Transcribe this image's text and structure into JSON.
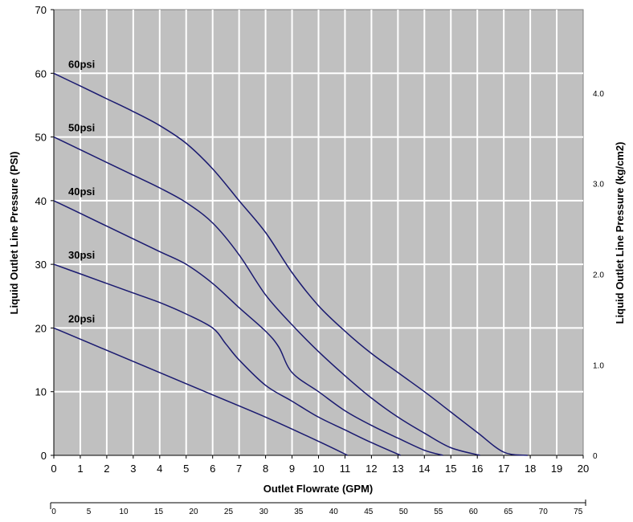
{
  "chart_data": {
    "type": "line",
    "xlabel": "Outlet Flowrate (GPM)",
    "ylabel": "Liquid Outlet Line Pressure (PSI)",
    "ylabel_right": "Liquid Outlet Line Pressure (kg/cm2)",
    "xlim": [
      0,
      20
    ],
    "ylim": [
      0,
      70
    ],
    "x_ticks": [
      "0",
      "1",
      "2",
      "3",
      "4",
      "5",
      "6",
      "7",
      "8",
      "9",
      "10",
      "11",
      "12",
      "13",
      "14",
      "15",
      "16",
      "17",
      "18",
      "19",
      "20"
    ],
    "y_ticks": [
      "0",
      "10",
      "20",
      "30",
      "40",
      "50",
      "60",
      "70"
    ],
    "right_ticks": [
      {
        "label": "0",
        "value": 0
      },
      {
        "label": "1.0",
        "value": 14.22
      },
      {
        "label": "2.0",
        "value": 28.45
      },
      {
        "label": "3.0",
        "value": 42.67
      },
      {
        "label": "4.0",
        "value": 56.89
      }
    ],
    "secondary_x_ticks": [
      {
        "label": "0",
        "value": 0
      },
      {
        "label": "5",
        "value": 1.32
      },
      {
        "label": "10",
        "value": 2.64
      },
      {
        "label": "15",
        "value": 3.96
      },
      {
        "label": "20",
        "value": 5.28
      },
      {
        "label": "25",
        "value": 6.6
      },
      {
        "label": "30",
        "value": 7.93
      },
      {
        "label": "35",
        "value": 9.25
      },
      {
        "label": "40",
        "value": 10.57
      },
      {
        "label": "45",
        "value": 11.89
      },
      {
        "label": "50",
        "value": 13.21
      },
      {
        "label": "55",
        "value": 14.53
      },
      {
        "label": "60",
        "value": 15.85
      },
      {
        "label": "65",
        "value": 17.17
      },
      {
        "label": "70",
        "value": 18.49
      },
      {
        "label": "75",
        "value": 19.81
      }
    ],
    "grid": true,
    "colors": {
      "plot_bg": "#c0c0c0",
      "grid": "#ffffff",
      "line": "#1a1a70"
    },
    "series": [
      {
        "name": "60psi",
        "x": [
          0,
          1,
          2,
          3,
          4,
          5,
          6,
          7,
          8,
          9,
          10,
          11,
          12,
          13,
          14,
          15,
          16,
          17,
          17.9
        ],
        "y": [
          60,
          58,
          56,
          54,
          51.8,
          49,
          45,
          40,
          35,
          28.7,
          23.5,
          19.5,
          16,
          13,
          10,
          6.8,
          3.6,
          0.5,
          0
        ]
      },
      {
        "name": "50psi",
        "x": [
          0,
          1,
          2,
          3,
          4,
          5,
          6,
          7,
          8,
          9,
          10,
          11,
          12,
          13,
          14,
          15,
          16.1
        ],
        "y": [
          50,
          48,
          46,
          44,
          42,
          39.7,
          36.5,
          31.5,
          25.2,
          20.5,
          16.3,
          12.5,
          9,
          6,
          3.5,
          1.2,
          0
        ]
      },
      {
        "name": "40psi",
        "x": [
          0,
          1,
          2,
          3,
          4,
          5,
          6,
          7,
          8,
          8.5,
          9,
          10,
          11,
          12,
          13,
          14,
          14.7
        ],
        "y": [
          40,
          38,
          36,
          34,
          32,
          30,
          27,
          23.2,
          19.5,
          17,
          13,
          10,
          7,
          4.7,
          2.7,
          0.8,
          0
        ]
      },
      {
        "name": "30psi",
        "x": [
          0,
          1,
          2,
          3,
          4,
          5,
          6,
          6.5,
          7,
          8,
          9,
          10,
          11,
          12,
          13.1
        ],
        "y": [
          30,
          28.5,
          27,
          25.5,
          24,
          22.2,
          20,
          17.5,
          15,
          11,
          8.5,
          6,
          4,
          2,
          0
        ]
      },
      {
        "name": "20psi",
        "x": [
          0,
          2,
          4,
          6,
          8,
          10,
          11.1
        ],
        "y": [
          20,
          16.5,
          13,
          9.5,
          6,
          2.2,
          0
        ]
      }
    ]
  }
}
